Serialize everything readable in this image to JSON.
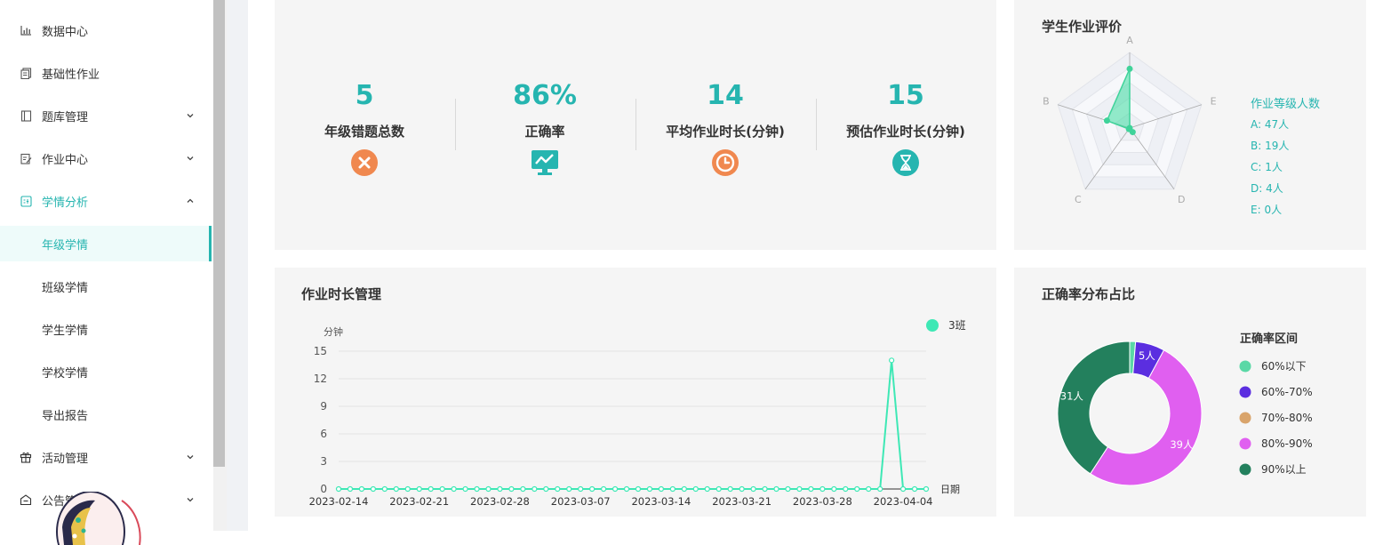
{
  "sidebar": {
    "items": [
      {
        "label": "数据中心",
        "icon": "bar-chart-icon",
        "has_children": false
      },
      {
        "label": "基础性作业",
        "icon": "document-copy-icon",
        "has_children": false
      },
      {
        "label": "题库管理",
        "icon": "notebook-icon",
        "has_children": true
      },
      {
        "label": "作业中心",
        "icon": "edit-document-icon",
        "has_children": true
      },
      {
        "label": "学情分析",
        "icon": "analysis-icon",
        "has_children": true,
        "expanded": true
      },
      {
        "label": "活动管理",
        "icon": "gift-icon",
        "has_children": true
      },
      {
        "label": "公告管理",
        "icon": "notice-icon",
        "has_children": true
      }
    ],
    "sub_items": [
      {
        "label": "年级学情",
        "active": true
      },
      {
        "label": "班级学情",
        "active": false
      },
      {
        "label": "学生学情",
        "active": false
      },
      {
        "label": "学校学情",
        "active": false
      },
      {
        "label": "导出报告",
        "active": false
      }
    ]
  },
  "stats": [
    {
      "value": "5",
      "label": "年级错题总数",
      "icon": "close-circle-icon",
      "icon_color": "#f0884f"
    },
    {
      "value": "86%",
      "label": "正确率",
      "icon": "monitor-trend-icon",
      "icon_color": "#26b5b0"
    },
    {
      "value": "14",
      "label": "平均作业时长(分钟)",
      "icon": "clock-icon",
      "icon_color": "#f0884f"
    },
    {
      "value": "15",
      "label": "预估作业时长(分钟)",
      "icon": "hourglass-icon",
      "icon_color": "#26b5b0"
    }
  ],
  "radar": {
    "title": "学生作业评价",
    "legend_title": "作业等级人数",
    "legend_items": [
      "A: 47人",
      "B: 19人",
      "C: 1人",
      "D: 4人",
      "E: 0人"
    ]
  },
  "line": {
    "title": "作业时长管理"
  },
  "donut": {
    "title": "正确率分布占比"
  },
  "colors": {
    "accent": "#26b5b0",
    "line": "#3ee8b5",
    "card": "#f5f5f5"
  },
  "chart_data": [
    {
      "type": "radar",
      "indicators": [
        "A",
        "E",
        "D",
        "C",
        "B"
      ],
      "max": 60,
      "values": [
        47,
        0,
        4,
        1,
        19
      ]
    },
    {
      "type": "line",
      "ylabel": "分钟",
      "xlabel": "日期",
      "ylim": [
        0,
        15
      ],
      "yticks": [
        0,
        3,
        6,
        9,
        12,
        15
      ],
      "xtick_labels": [
        "2023-02-14",
        "2023-02-21",
        "2023-02-28",
        "2023-03-07",
        "2023-03-14",
        "2023-03-21",
        "2023-03-28",
        "2023-04-04"
      ],
      "x_start": "2023-02-14",
      "x_end": "2023-04-06",
      "series": [
        {
          "name": "3班",
          "color": "#3ee8b5",
          "points": [
            [
              "2023-04-03",
              14
            ]
          ],
          "default": 0
        }
      ],
      "legend": "top-right",
      "grid": true
    },
    {
      "type": "pie",
      "donut": true,
      "legend_title": "正确率区间",
      "categories": [
        "60%以下",
        "60%-70%",
        "70%-80%",
        "80%-90%",
        "90%以上"
      ],
      "values": [
        1,
        5,
        0,
        39,
        31
      ],
      "data_labels": [
        "",
        "5人",
        "",
        "39人",
        "31人"
      ],
      "colors": [
        "#5ad8a6",
        "#5b2ee0",
        "#d9a46b",
        "#e05ff0",
        "#23805d"
      ],
      "legend": "right"
    }
  ]
}
